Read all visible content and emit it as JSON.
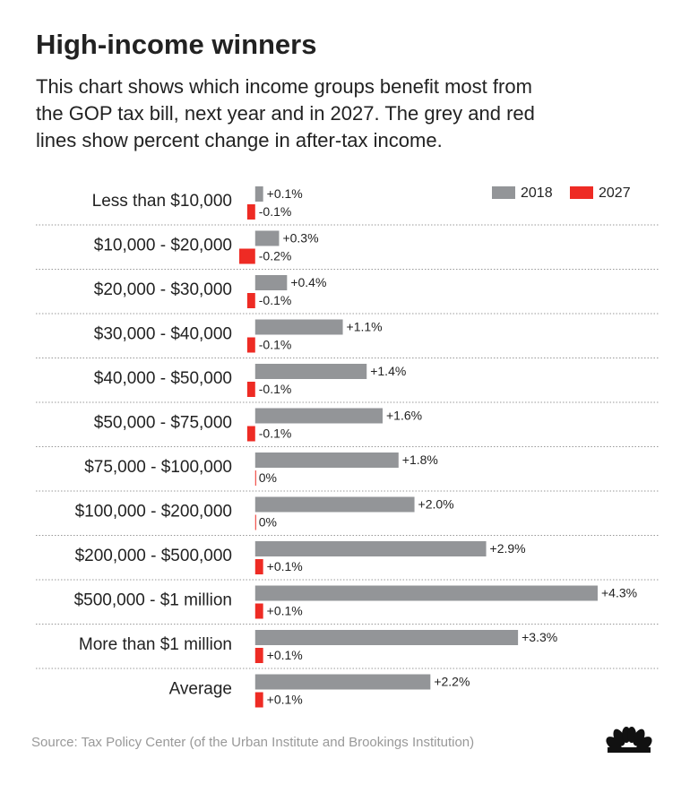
{
  "chart_data": {
    "type": "bar",
    "orientation": "horizontal",
    "title": "High-income winners",
    "subtitle": [
      "This chart shows which income groups benefit most from",
      "the GOP tax bill, next year and in 2027. The grey and red",
      "lines show percent change in after-tax income."
    ],
    "categories": [
      "Less than $10,000",
      "$10,000 - $20,000",
      "$20,000 - $30,000",
      "$30,000 - $40,000",
      "$40,000 - $50,000",
      "$50,000 - $75,000",
      "$75,000 - $100,000",
      "$100,000 - $200,000",
      "$200,000 - $500,000",
      "$500,000 - $1 million",
      "More than $1 million",
      "Average"
    ],
    "series": [
      {
        "name": "2018",
        "color": "#939598",
        "values": [
          0.1,
          0.3,
          0.4,
          1.1,
          1.4,
          1.6,
          1.8,
          2.0,
          2.9,
          4.3,
          3.3,
          2.2
        ],
        "value_labels": [
          "+0.1%",
          "+0.3%",
          "+0.4%",
          "+1.1%",
          "+1.4%",
          "+1.6%",
          "+1.8%",
          "+2.0%",
          "+2.9%",
          "+4.3%",
          "+3.3%",
          "+2.2%"
        ]
      },
      {
        "name": "2027",
        "color": "#ee2b24",
        "values": [
          -0.1,
          -0.2,
          -0.1,
          -0.1,
          -0.1,
          -0.1,
          0,
          0,
          0.1,
          0.1,
          0.1,
          0.1
        ],
        "value_labels": [
          "-0.1%",
          "-0.2%",
          "-0.1%",
          "-0.1%",
          "-0.1%",
          "-0.1%",
          "0%",
          "0%",
          "+0.1%",
          "+0.1%",
          "+0.1%",
          "+0.1%"
        ]
      }
    ],
    "xlim": [
      -0.2,
      4.3
    ],
    "legend": "top-right",
    "source": "Source: Tax Policy Center (of the Urban Institute and Brookings Institution)"
  }
}
